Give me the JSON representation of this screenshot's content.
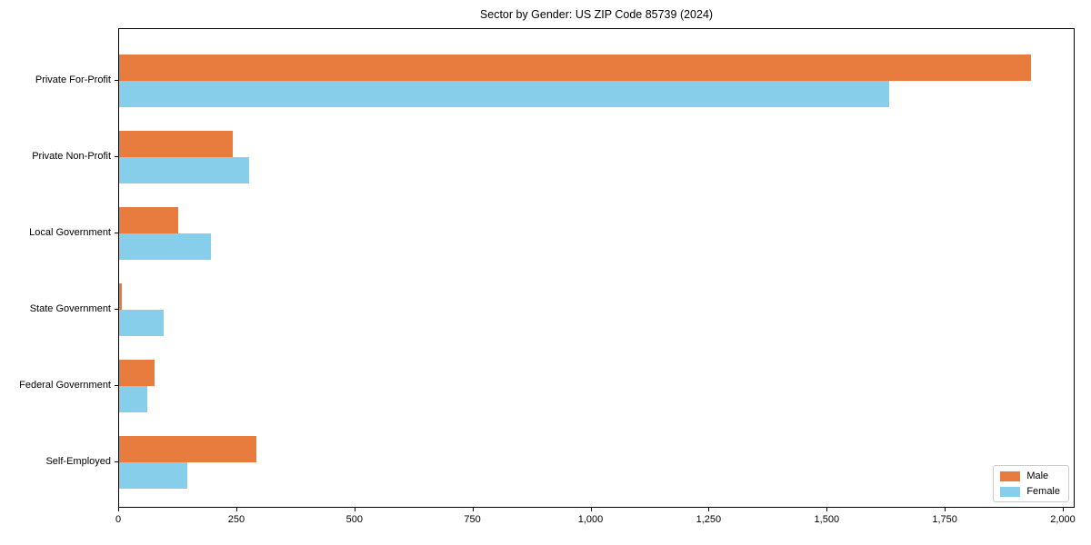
{
  "chart_data": {
    "type": "bar",
    "orientation": "horizontal",
    "title": "Sector by Gender: US ZIP Code 85739 (2024)",
    "categories": [
      "Private For-Profit",
      "Private Non-Profit",
      "Local Government",
      "State Government",
      "Federal Government",
      "Self-Employed"
    ],
    "series": [
      {
        "name": "Male",
        "color": "#E87B3E",
        "values": [
          1930,
          240,
          125,
          5,
          75,
          290
        ]
      },
      {
        "name": "Female",
        "color": "#87CEEB",
        "values": [
          1630,
          275,
          195,
          95,
          60,
          145
        ]
      }
    ],
    "xlabel": "",
    "ylabel": "",
    "xlim": [
      0,
      2000
    ],
    "xticks": [
      0,
      250,
      500,
      750,
      1000,
      1250,
      1500,
      1750,
      2000
    ],
    "xtick_labels": [
      "0",
      "250",
      "500",
      "750",
      "1,000",
      "1,250",
      "1,500",
      "1,750",
      "2,000"
    ],
    "grid": false,
    "legend_position": "lower right",
    "axis_color": "#000000",
    "background_color": "#ffffff"
  }
}
